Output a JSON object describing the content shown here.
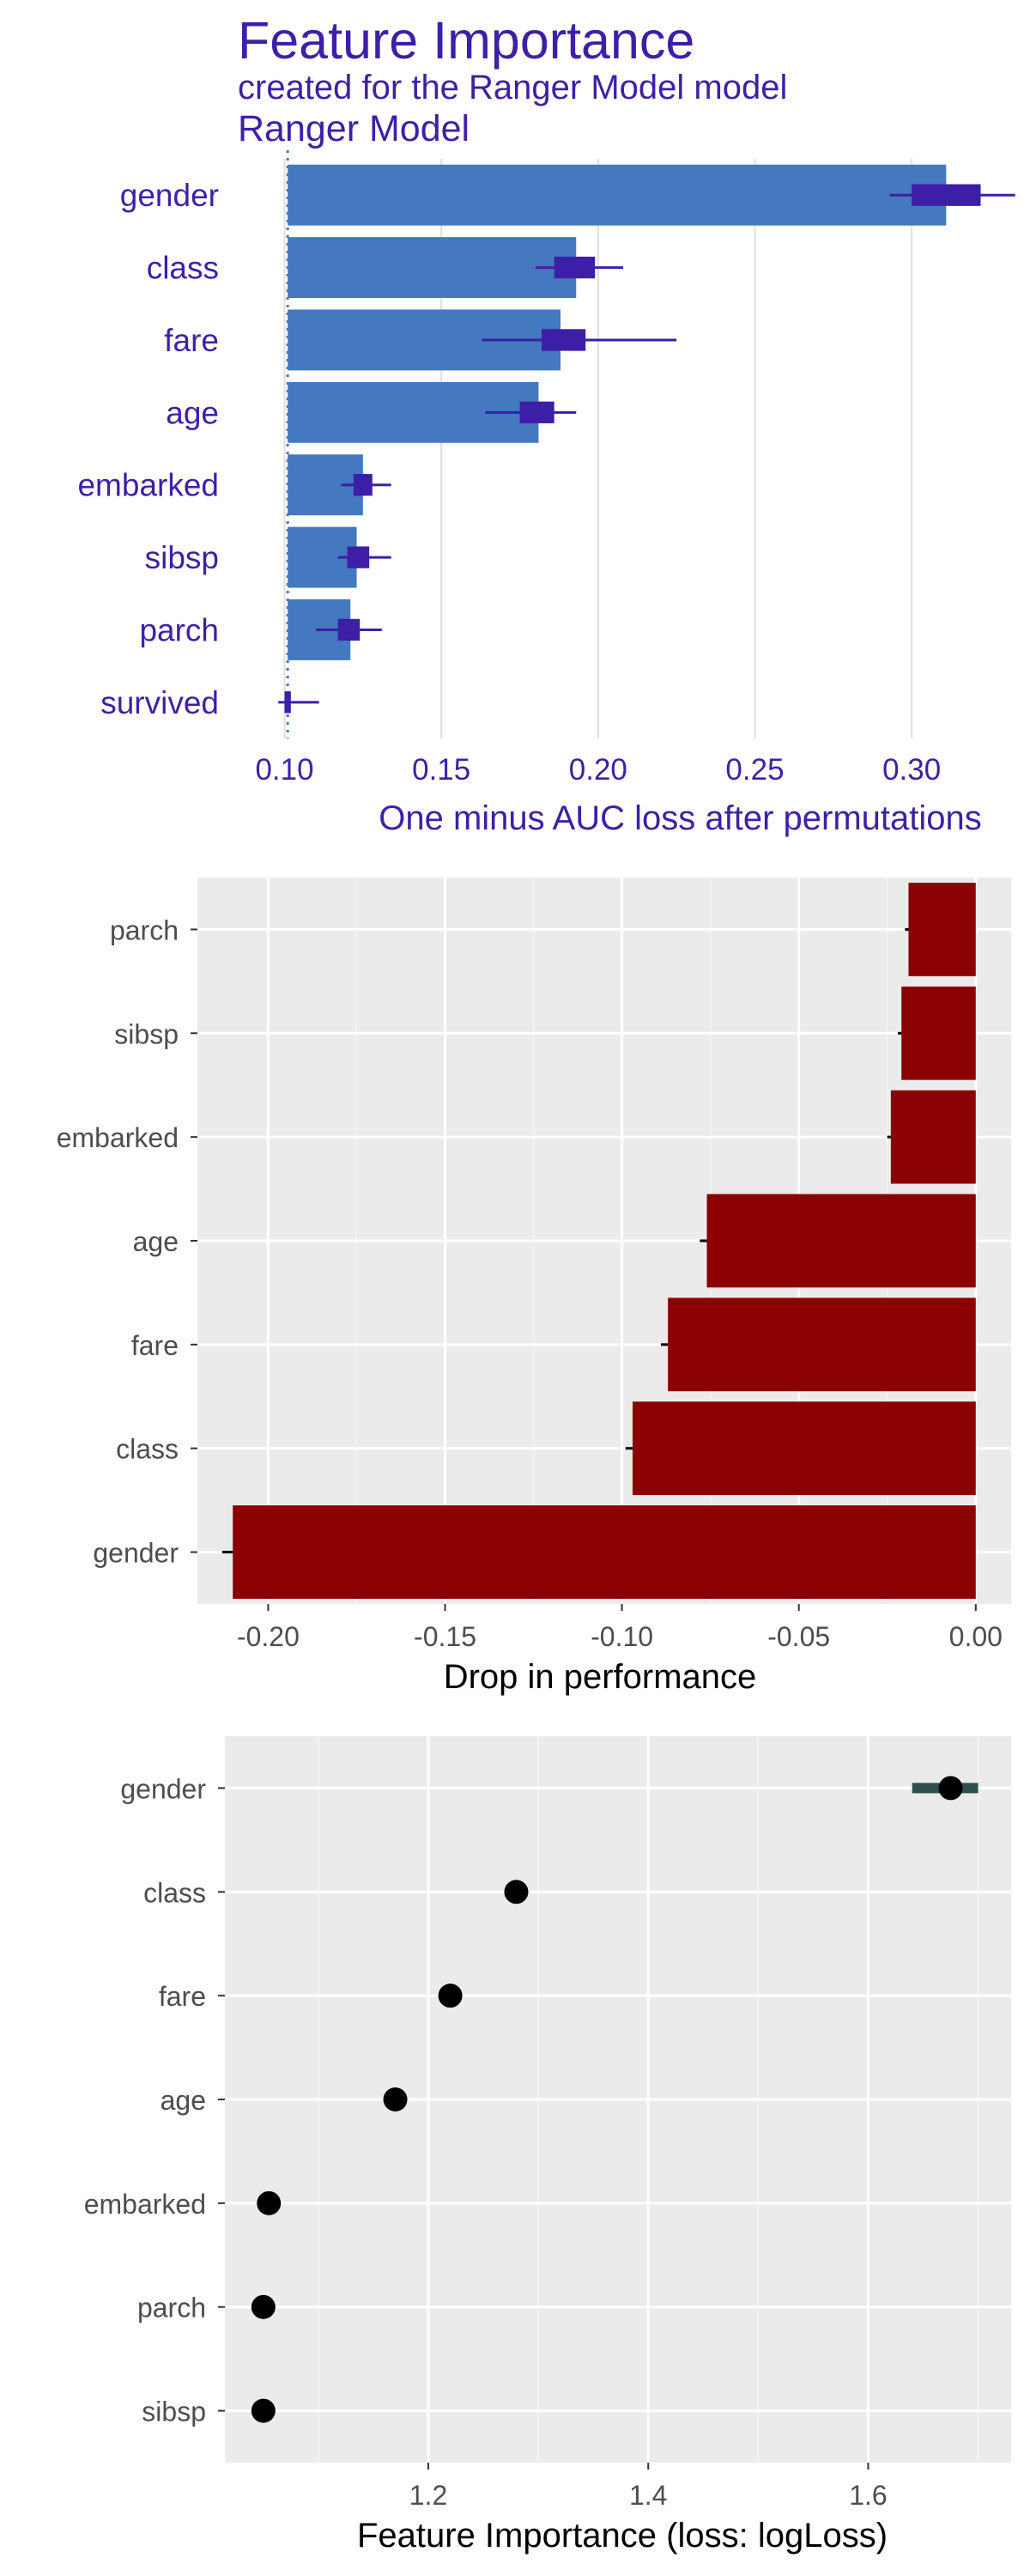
{
  "chart_data": [
    {
      "type": "bar",
      "title": "Feature Importance",
      "subtitle": "created for the Ranger Model model",
      "facet_label": "Ranger Model",
      "xlabel": "One minus AUC loss after permutations",
      "ylabel": "",
      "baseline": 0.101,
      "xlim": [
        0.09,
        0.335
      ],
      "x_ticks": [
        0.1,
        0.15,
        0.2,
        0.25,
        0.3
      ],
      "x_tick_labels": [
        "0.10",
        "0.15",
        "0.20",
        "0.25",
        "0.30"
      ],
      "categories": [
        "gender",
        "class",
        "fare",
        "age",
        "embarked",
        "sibsp",
        "parch",
        "survived"
      ],
      "values": [
        0.311,
        0.193,
        0.188,
        0.181,
        0.125,
        0.123,
        0.121,
        0.101
      ],
      "boxplot": [
        {
          "min": 0.293,
          "q1": 0.3,
          "median": 0.306,
          "q3": 0.322,
          "max": 0.333
        },
        {
          "min": 0.18,
          "q1": 0.186,
          "median": 0.19,
          "q3": 0.199,
          "max": 0.208
        },
        {
          "min": 0.163,
          "q1": 0.182,
          "median": 0.188,
          "q3": 0.196,
          "max": 0.225
        },
        {
          "min": 0.164,
          "q1": 0.175,
          "median": 0.18,
          "q3": 0.186,
          "max": 0.193
        },
        {
          "min": 0.118,
          "q1": 0.122,
          "median": 0.124,
          "q3": 0.128,
          "max": 0.134
        },
        {
          "min": 0.117,
          "q1": 0.12,
          "median": 0.122,
          "q3": 0.127,
          "max": 0.134
        },
        {
          "min": 0.11,
          "q1": 0.117,
          "median": 0.12,
          "q3": 0.124,
          "max": 0.131
        },
        {
          "min": 0.098,
          "q1": 0.1,
          "median": 0.101,
          "q3": 0.102,
          "max": 0.111
        }
      ],
      "bar_color": "#4478bf",
      "box_color": "#3d1ea6",
      "grid": true
    },
    {
      "type": "bar",
      "xlabel": "Drop in performance",
      "ylabel": "",
      "xlim": [
        -0.22,
        0.01
      ],
      "x_ticks": [
        -0.2,
        -0.15,
        -0.1,
        -0.05,
        0.0
      ],
      "x_tick_labels": [
        "-0.20",
        "-0.15",
        "-0.10",
        "-0.05",
        "0.00"
      ],
      "categories": [
        "parch",
        "sibsp",
        "embarked",
        "age",
        "fare",
        "class",
        "gender"
      ],
      "values": [
        -0.019,
        -0.021,
        -0.024,
        -0.076,
        -0.087,
        -0.097,
        -0.21
      ],
      "error_low": [
        -0.02,
        -0.022,
        -0.025,
        -0.078,
        -0.089,
        -0.099,
        -0.213
      ],
      "bar_color": "#8b0000",
      "panel_background": "#ebebeb",
      "grid": true
    },
    {
      "type": "scatter",
      "xlabel": "Feature Importance (loss: logLoss)",
      "ylabel": "",
      "xlim": [
        1.015,
        1.73
      ],
      "x_ticks": [
        1.2,
        1.4,
        1.6
      ],
      "x_tick_labels": [
        "1.2",
        "1.4",
        "1.6"
      ],
      "categories": [
        "gender",
        "class",
        "fare",
        "age",
        "embarked",
        "parch",
        "sibsp"
      ],
      "values": [
        1.675,
        1.28,
        1.22,
        1.17,
        1.055,
        1.05,
        1.05
      ],
      "range": [
        {
          "low": 1.64,
          "high": 1.7
        },
        null,
        null,
        null,
        null,
        null,
        null
      ],
      "point_color": "#000000",
      "range_color": "#2f4f4f",
      "panel_background": "#ebebeb",
      "grid": true
    }
  ]
}
